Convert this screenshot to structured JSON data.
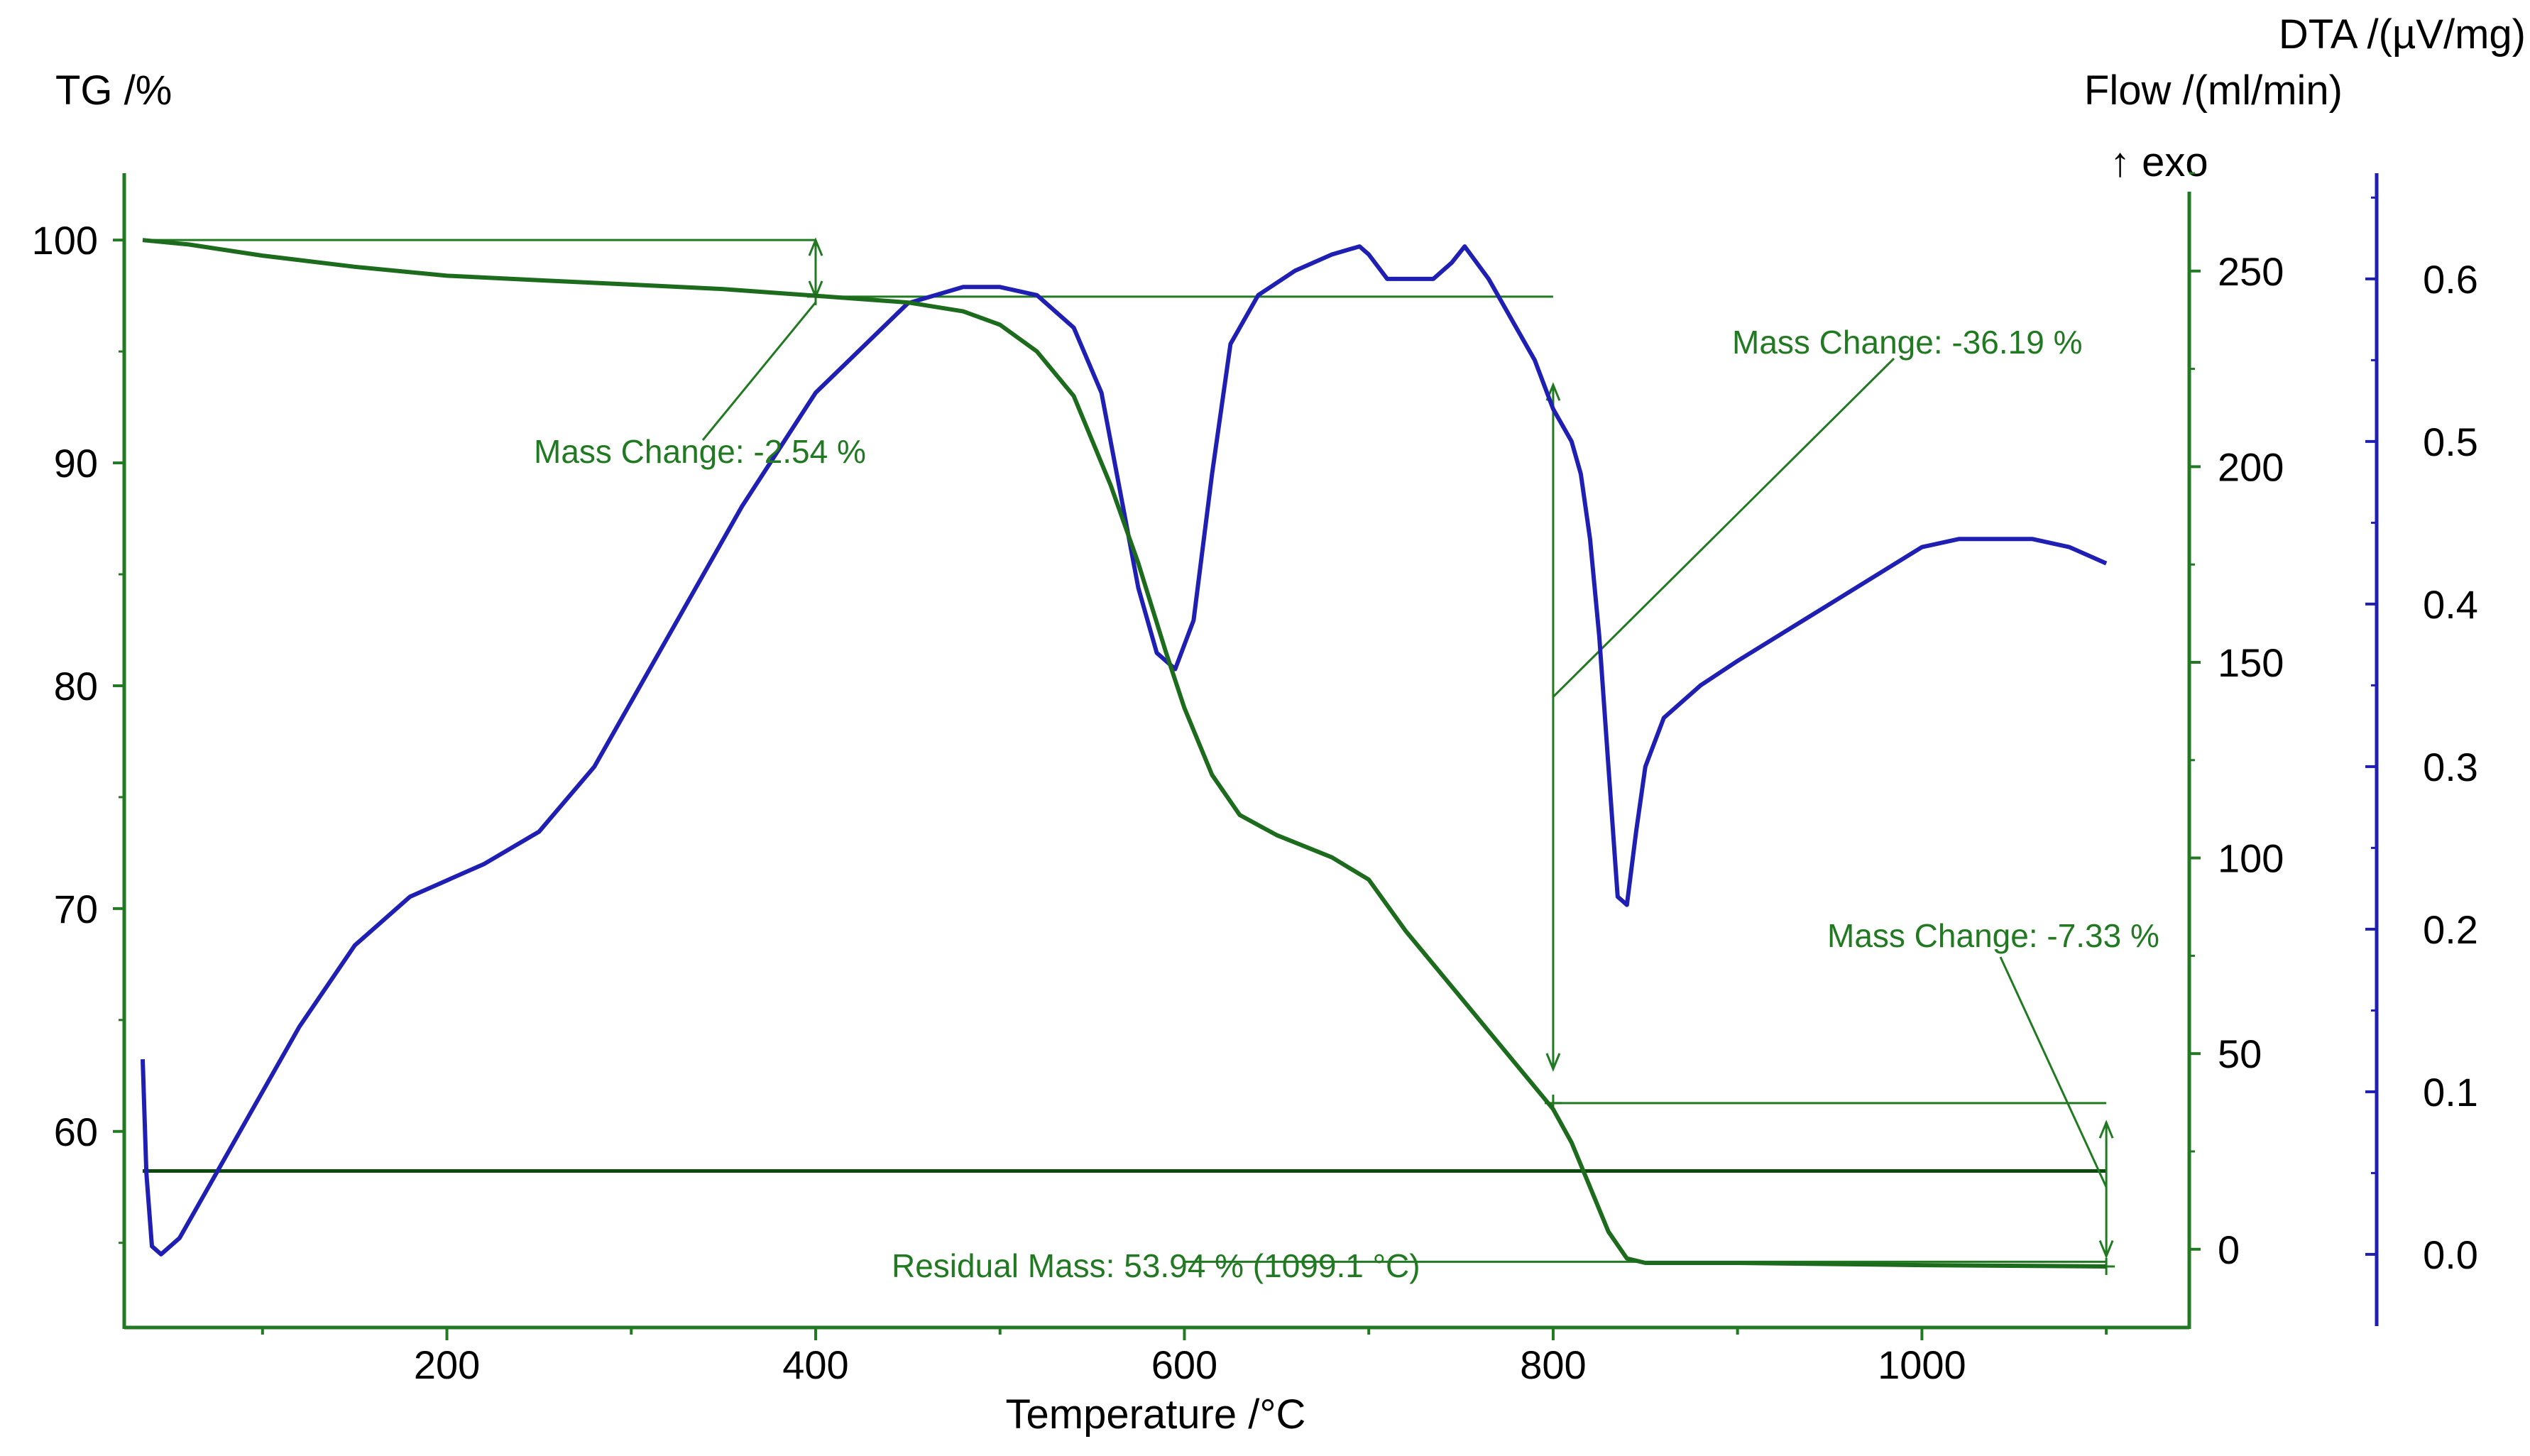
{
  "chart_data": {
    "type": "line",
    "title": "",
    "colors": {
      "tg": "#1d6b1d",
      "dta": "#1f1fb4",
      "axis_left": "#217a21",
      "axis_flow": "#217a21",
      "axis_dta": "#1f1fb4",
      "annotation": "#217a21",
      "baseline": "#0a4a0a"
    },
    "x_axis": {
      "label": "Temperature /°C",
      "range": [
        25,
        1145
      ],
      "major_ticks": [
        200,
        400,
        600,
        800,
        1000
      ],
      "tick_labels": [
        "200",
        "400",
        "600",
        "800",
        "1000"
      ],
      "minor_step": 100
    },
    "tg_axis": {
      "label": "TG /%",
      "range": [
        51.2,
        103
      ],
      "ticks": [
        60,
        70,
        80,
        90,
        100
      ],
      "tick_labels": [
        "60",
        "70",
        "80",
        "90",
        "100"
      ]
    },
    "flow_axis": {
      "label": "Flow /(ml/min)",
      "range": [
        -20,
        275
      ],
      "ticks": [
        0,
        50,
        100,
        150,
        200,
        250
      ],
      "tick_labels": [
        "0",
        "50",
        "100",
        "150",
        "200",
        "250"
      ]
    },
    "dta_axis": {
      "label": "DTA /(µV/mg)",
      "range": [
        -0.045,
        0.665
      ],
      "ticks": [
        0.0,
        0.1,
        0.2,
        0.3,
        0.4,
        0.5,
        0.6
      ],
      "tick_labels": [
        "0.0",
        "0.1",
        "0.2",
        "0.3",
        "0.4",
        "0.5",
        "0.6"
      ],
      "exo_label": "↑ exo"
    },
    "series": [
      {
        "name": "TG",
        "axis": "tg",
        "x": [
          35,
          60,
          100,
          150,
          200,
          250,
          300,
          350,
          400,
          450,
          480,
          500,
          520,
          540,
          560,
          575,
          590,
          600,
          615,
          630,
          650,
          680,
          700,
          720,
          750,
          780,
          800,
          810,
          820,
          830,
          840,
          850,
          900,
          1000,
          1100
        ],
        "y": [
          100,
          99.8,
          99.3,
          98.8,
          98.4,
          98.2,
          98.0,
          97.8,
          97.5,
          97.2,
          96.8,
          96.2,
          95.0,
          93.0,
          89.0,
          85.5,
          81.5,
          79.0,
          76.0,
          74.2,
          73.3,
          72.3,
          71.3,
          69.0,
          66.0,
          63.0,
          61.0,
          59.5,
          57.5,
          55.5,
          54.3,
          54.1,
          54.1,
          54.0,
          53.94
        ]
      },
      {
        "name": "DTA",
        "axis": "dta",
        "x": [
          35,
          37,
          40,
          45,
          55,
          70,
          90,
          120,
          150,
          180,
          200,
          220,
          250,
          280,
          320,
          360,
          400,
          450,
          480,
          500,
          520,
          540,
          555,
          565,
          575,
          585,
          595,
          605,
          615,
          625,
          640,
          660,
          680,
          695,
          700,
          710,
          720,
          735,
          745,
          752,
          765,
          780,
          790,
          800,
          810,
          815,
          820,
          825,
          830,
          835,
          840,
          845,
          850,
          860,
          880,
          900,
          950,
          1000,
          1020,
          1060,
          1080,
          1100
        ],
        "y": [
          0.12,
          0.05,
          0.005,
          0.0,
          0.01,
          0.04,
          0.08,
          0.14,
          0.19,
          0.22,
          0.23,
          0.24,
          0.26,
          0.3,
          0.38,
          0.46,
          0.53,
          0.585,
          0.595,
          0.595,
          0.59,
          0.57,
          0.53,
          0.47,
          0.41,
          0.37,
          0.36,
          0.39,
          0.48,
          0.56,
          0.59,
          0.605,
          0.615,
          0.62,
          0.615,
          0.6,
          0.6,
          0.6,
          0.61,
          0.62,
          0.6,
          0.57,
          0.55,
          0.52,
          0.5,
          0.48,
          0.44,
          0.38,
          0.3,
          0.22,
          0.215,
          0.26,
          0.3,
          0.33,
          0.35,
          0.365,
          0.4,
          0.435,
          0.44,
          0.44,
          0.435,
          0.425
        ]
      },
      {
        "name": "Flow",
        "axis": "flow",
        "x": [
          35,
          1100
        ],
        "y": [
          20,
          20
        ]
      }
    ],
    "annotations": [
      {
        "text": "Mass Change: -2.54 %"
      },
      {
        "text": "Mass Change: -36.19 %"
      },
      {
        "text": "Mass Change: -7.33 %"
      },
      {
        "text": "Residual Mass: 53.94 % (1099.1 °C)"
      }
    ]
  }
}
